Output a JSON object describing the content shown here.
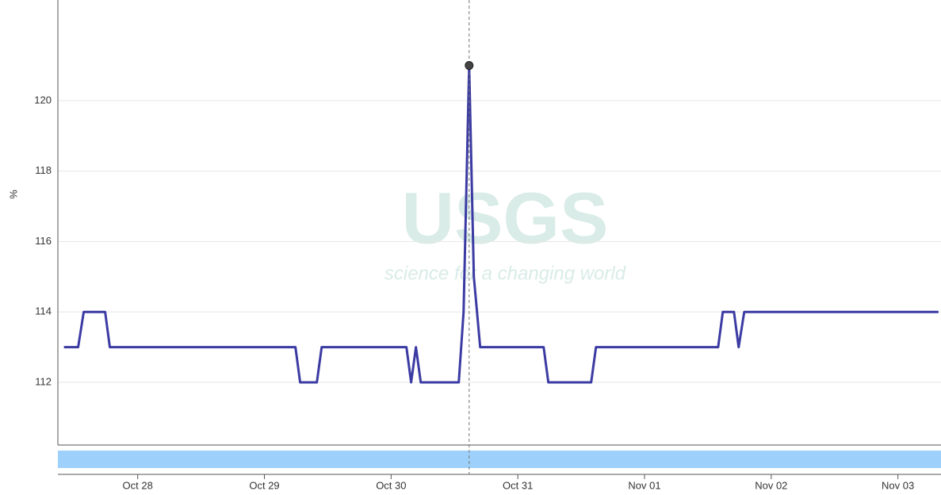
{
  "chart_data": {
    "type": "line",
    "ylabel": "%",
    "watermark": "USGS",
    "watermark_tagline": "science for a changing world",
    "x": [
      27.418,
      27.53,
      27.574,
      27.743,
      27.78,
      29.245,
      29.282,
      29.414,
      29.452,
      30.121,
      30.158,
      30.196,
      30.234,
      30.534,
      30.572,
      30.616,
      30.653,
      30.703,
      31.204,
      31.241,
      31.579,
      31.617,
      32.581,
      32.618,
      32.706,
      32.743,
      32.787,
      34.32
    ],
    "series": [
      {
        "color": "#3b3ba3",
        "values": [
          113,
          113,
          114,
          114,
          113,
          113,
          112,
          112,
          113,
          113,
          112,
          113,
          112,
          112,
          114,
          121,
          115,
          113,
          113,
          112,
          112,
          113,
          113,
          114,
          114,
          113,
          114,
          114
        ]
      }
    ],
    "xlim": [
      27.37,
      34.34
    ],
    "xticks": [
      {
        "value": 28,
        "label": "Oct 28"
      },
      {
        "value": 29,
        "label": "Oct 29"
      },
      {
        "value": 30,
        "label": "Oct 30"
      },
      {
        "value": 31,
        "label": "Oct 31"
      },
      {
        "value": 32,
        "label": "Nov 01"
      },
      {
        "value": 33,
        "label": "Nov 02"
      },
      {
        "value": 34,
        "label": "Nov 03"
      }
    ],
    "ylim": [
      110.22,
      122.86
    ],
    "yticks": [
      112,
      114,
      116,
      118,
      120
    ],
    "grid": true,
    "highlight_index": 15
  }
}
